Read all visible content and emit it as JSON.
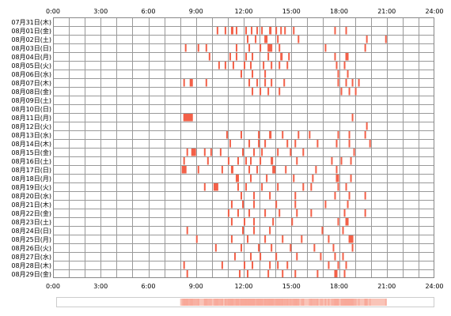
{
  "chart_data": {
    "type": "heatmap",
    "x_tick_labels": [
      "0:00",
      "3:00",
      "6:00",
      "9:00",
      "12:00",
      "15:00",
      "18:00",
      "21:00",
      "24:00"
    ],
    "xlim": [
      0,
      24
    ],
    "rows": [
      "07月31日(木)",
      "08月01日(金)",
      "08月02日(土)",
      "08月03日(日)",
      "08月04日(月)",
      "08月05日(火)",
      "08月06日(水)",
      "08月07日(木)",
      "08月08日(金)",
      "08月09日(土)",
      "08月10日(日)",
      "08月11日(月)",
      "08月12日(火)",
      "08月13日(水)",
      "08月14日(木)",
      "08月15日(金)",
      "08月16日(土)",
      "08月17日(日)",
      "08月18日(月)",
      "08月19日(火)",
      "08月20日(水)",
      "08月21日(木)",
      "08月22日(金)",
      "08月23日(土)",
      "08月24日(日)",
      "08月25日(月)",
      "08月26日(火)",
      "08月27日(水)",
      "08月28日(木)",
      "08月29日(金)"
    ],
    "grid": true,
    "colors": {
      "background": "#ffffff",
      "grid": "#999999",
      "activity": "#f36048",
      "activity_light": "#f8a898",
      "summary_border": "#cccccc",
      "summary_fill": "#f9c4b8"
    },
    "activity": [
      [],
      [
        [
          10.3,
          10.4
        ],
        [
          10.8,
          10.9
        ],
        [
          11.2,
          11.35
        ],
        [
          11.5,
          11.6
        ],
        [
          12.1,
          12.2
        ],
        [
          12.45,
          12.55
        ],
        [
          12.8,
          12.9
        ],
        [
          13.1,
          13.2
        ],
        [
          13.6,
          13.75
        ],
        [
          14.0,
          14.1
        ],
        [
          14.3,
          14.4
        ],
        [
          14.55,
          14.65
        ],
        [
          15.1,
          15.2
        ],
        [
          17.7,
          17.8
        ],
        [
          18.4,
          18.5
        ]
      ],
      [
        [
          12.2,
          12.3
        ],
        [
          12.7,
          12.8
        ],
        [
          13.3,
          13.5
        ],
        [
          14.1,
          14.2
        ],
        [
          15.4,
          15.5
        ],
        [
          19.7,
          19.8
        ],
        [
          20.9,
          21.0
        ]
      ],
      [
        [
          8.3,
          8.4
        ],
        [
          9.1,
          9.2
        ],
        [
          9.6,
          9.7
        ],
        [
          11.5,
          11.6
        ],
        [
          12.3,
          12.4
        ],
        [
          13.0,
          13.1
        ],
        [
          13.5,
          13.8
        ],
        [
          14.2,
          14.3
        ],
        [
          17.1,
          17.2
        ],
        [
          19.6,
          19.7
        ]
      ],
      [
        [
          9.8,
          9.9
        ],
        [
          11.1,
          11.2
        ],
        [
          11.5,
          11.6
        ],
        [
          12.1,
          12.2
        ],
        [
          12.5,
          12.6
        ],
        [
          13.5,
          13.6
        ],
        [
          14.3,
          14.45
        ],
        [
          14.8,
          14.9
        ],
        [
          17.7,
          17.8
        ],
        [
          18.4,
          18.6
        ]
      ],
      [
        [
          10.4,
          10.5
        ],
        [
          10.8,
          10.9
        ],
        [
          11.3,
          11.4
        ],
        [
          12.0,
          12.1
        ],
        [
          12.4,
          12.5
        ],
        [
          13.2,
          13.3
        ],
        [
          13.7,
          13.8
        ],
        [
          14.2,
          14.3
        ],
        [
          14.7,
          14.8
        ],
        [
          17.8,
          17.9
        ],
        [
          18.3,
          18.4
        ]
      ],
      [
        [
          11.8,
          11.9
        ],
        [
          12.5,
          12.6
        ],
        [
          13.3,
          13.4
        ],
        [
          17.9,
          18.0
        ],
        [
          18.5,
          18.6
        ]
      ],
      [
        [
          8.2,
          8.3
        ],
        [
          8.6,
          8.8
        ],
        [
          9.6,
          9.7
        ],
        [
          12.3,
          12.4
        ],
        [
          12.8,
          12.9
        ],
        [
          13.3,
          13.4
        ],
        [
          13.7,
          13.8
        ],
        [
          14.5,
          14.6
        ],
        [
          17.9,
          18.0
        ],
        [
          18.4,
          18.5
        ],
        [
          18.8,
          18.9
        ],
        [
          19.2,
          19.3
        ]
      ],
      [
        [
          12.5,
          12.6
        ],
        [
          13.0,
          13.1
        ],
        [
          13.5,
          13.6
        ],
        [
          14.2,
          14.3
        ],
        [
          18.1,
          18.2
        ],
        [
          18.6,
          18.7
        ],
        [
          19.0,
          19.1
        ]
      ],
      [],
      [],
      [
        [
          8.2,
          8.8
        ],
        [
          18.8,
          18.9
        ]
      ],
      [
        [
          19.7,
          19.8
        ]
      ],
      [
        [
          10.9,
          11.0
        ],
        [
          11.8,
          11.9
        ],
        [
          12.9,
          13.0
        ],
        [
          13.6,
          13.75
        ],
        [
          14.4,
          14.5
        ],
        [
          15.4,
          15.5
        ],
        [
          16.1,
          16.2
        ],
        [
          17.9,
          18.0
        ],
        [
          18.6,
          18.7
        ],
        [
          19.6,
          19.7
        ]
      ],
      [
        [
          11.1,
          11.2
        ],
        [
          12.3,
          12.4
        ],
        [
          12.9,
          13.0
        ],
        [
          13.3,
          13.4
        ],
        [
          14.7,
          14.8
        ],
        [
          15.2,
          15.3
        ],
        [
          16.6,
          16.7
        ],
        [
          17.8,
          17.9
        ],
        [
          18.6,
          18.7
        ],
        [
          19.9,
          20.0
        ]
      ],
      [
        [
          8.4,
          8.5
        ],
        [
          8.7,
          9.0
        ],
        [
          9.5,
          9.6
        ],
        [
          9.9,
          10.0
        ],
        [
          10.5,
          10.6
        ],
        [
          11.9,
          12.0
        ],
        [
          12.6,
          12.7
        ],
        [
          13.1,
          13.2
        ],
        [
          14.1,
          14.2
        ],
        [
          14.9,
          15.0
        ],
        [
          15.7,
          15.8
        ],
        [
          18.9,
          19.0
        ]
      ],
      [
        [
          8.2,
          8.3
        ],
        [
          9.7,
          9.8
        ],
        [
          11.0,
          11.1
        ],
        [
          11.6,
          11.7
        ],
        [
          12.1,
          12.2
        ],
        [
          12.4,
          12.5
        ],
        [
          13.0,
          13.1
        ],
        [
          13.7,
          13.85
        ],
        [
          15.3,
          15.4
        ],
        [
          17.5,
          17.6
        ],
        [
          18.1,
          18.2
        ],
        [
          18.7,
          18.8
        ]
      ],
      [
        [
          8.1,
          8.4
        ],
        [
          9.1,
          9.2
        ],
        [
          10.6,
          10.7
        ],
        [
          11.2,
          11.35
        ],
        [
          12.3,
          12.4
        ],
        [
          12.8,
          12.9
        ],
        [
          13.8,
          14.0
        ],
        [
          14.6,
          14.7
        ],
        [
          16.5,
          16.6
        ],
        [
          17.8,
          17.9
        ]
      ],
      [
        [
          11.5,
          11.7
        ],
        [
          12.4,
          12.5
        ],
        [
          13.4,
          13.5
        ],
        [
          15.1,
          15.2
        ],
        [
          16.3,
          16.4
        ],
        [
          17.8,
          18.0
        ],
        [
          18.7,
          18.8
        ]
      ],
      [
        [
          9.5,
          9.6
        ],
        [
          10.1,
          10.4
        ],
        [
          11.6,
          11.7
        ],
        [
          12.1,
          12.2
        ],
        [
          13.1,
          13.2
        ],
        [
          14.1,
          14.2
        ],
        [
          15.7,
          15.8
        ],
        [
          16.2,
          16.3
        ],
        [
          17.9,
          18.0
        ],
        [
          18.4,
          18.5
        ]
      ],
      [
        [
          11.8,
          11.9
        ],
        [
          12.6,
          12.7
        ],
        [
          13.6,
          13.7
        ],
        [
          15.2,
          15.3
        ],
        [
          17.7,
          17.8
        ],
        [
          18.6,
          18.7
        ],
        [
          19.6,
          19.7
        ]
      ],
      [
        [
          11.2,
          11.3
        ],
        [
          11.9,
          12.0
        ],
        [
          12.6,
          12.7
        ],
        [
          14.0,
          14.1
        ],
        [
          15.2,
          15.3
        ],
        [
          17.1,
          17.2
        ],
        [
          18.5,
          18.6
        ]
      ],
      [
        [
          11.0,
          11.1
        ],
        [
          11.6,
          11.7
        ],
        [
          12.3,
          12.4
        ],
        [
          13.3,
          13.4
        ],
        [
          14.2,
          14.3
        ],
        [
          15.3,
          15.4
        ],
        [
          16.2,
          16.3
        ],
        [
          18.3,
          18.4
        ],
        [
          19.6,
          19.7
        ]
      ],
      [
        [
          11.2,
          11.3
        ],
        [
          12.0,
          12.1
        ],
        [
          12.6,
          12.7
        ],
        [
          13.8,
          13.9
        ],
        [
          15.0,
          15.1
        ],
        [
          17.9,
          18.0
        ],
        [
          18.4,
          18.6
        ]
      ],
      [
        [
          8.4,
          8.5
        ],
        [
          11.9,
          12.0
        ],
        [
          12.6,
          12.7
        ],
        [
          13.6,
          13.7
        ],
        [
          16.9,
          17.0
        ],
        [
          18.2,
          18.3
        ]
      ],
      [
        [
          9.0,
          9.1
        ],
        [
          11.2,
          11.3
        ],
        [
          12.2,
          12.3
        ],
        [
          13.3,
          13.4
        ],
        [
          14.4,
          14.5
        ],
        [
          15.6,
          15.7
        ],
        [
          17.3,
          17.4
        ],
        [
          18.6,
          18.9
        ]
      ],
      [
        [
          10.2,
          10.3
        ],
        [
          11.8,
          11.9
        ],
        [
          12.9,
          13.0
        ],
        [
          13.7,
          13.8
        ],
        [
          14.9,
          15.0
        ],
        [
          16.4,
          16.5
        ],
        [
          17.6,
          17.7
        ],
        [
          18.8,
          18.9
        ]
      ],
      [
        [
          11.4,
          11.5
        ],
        [
          12.4,
          12.5
        ],
        [
          13.0,
          13.1
        ],
        [
          14.0,
          14.1
        ],
        [
          15.3,
          15.4
        ],
        [
          16.8,
          16.9
        ],
        [
          17.7,
          17.8
        ],
        [
          18.2,
          18.3
        ]
      ],
      [
        [
          8.2,
          8.3
        ],
        [
          10.6,
          10.7
        ],
        [
          12.0,
          12.1
        ],
        [
          12.5,
          12.6
        ],
        [
          13.6,
          13.7
        ],
        [
          14.1,
          14.2
        ],
        [
          14.7,
          14.8
        ],
        [
          17.3,
          17.4
        ],
        [
          17.9,
          18.0
        ],
        [
          18.4,
          18.5
        ]
      ],
      [
        [
          8.4,
          8.5
        ],
        [
          11.7,
          11.8
        ],
        [
          12.2,
          12.3
        ],
        [
          13.5,
          13.6
        ],
        [
          14.4,
          14.5
        ],
        [
          15.2,
          15.3
        ],
        [
          16.6,
          16.7
        ],
        [
          17.7,
          17.9
        ],
        [
          18.3,
          18.4
        ]
      ]
    ],
    "summary_range": [
      8.0,
      21.0
    ]
  }
}
